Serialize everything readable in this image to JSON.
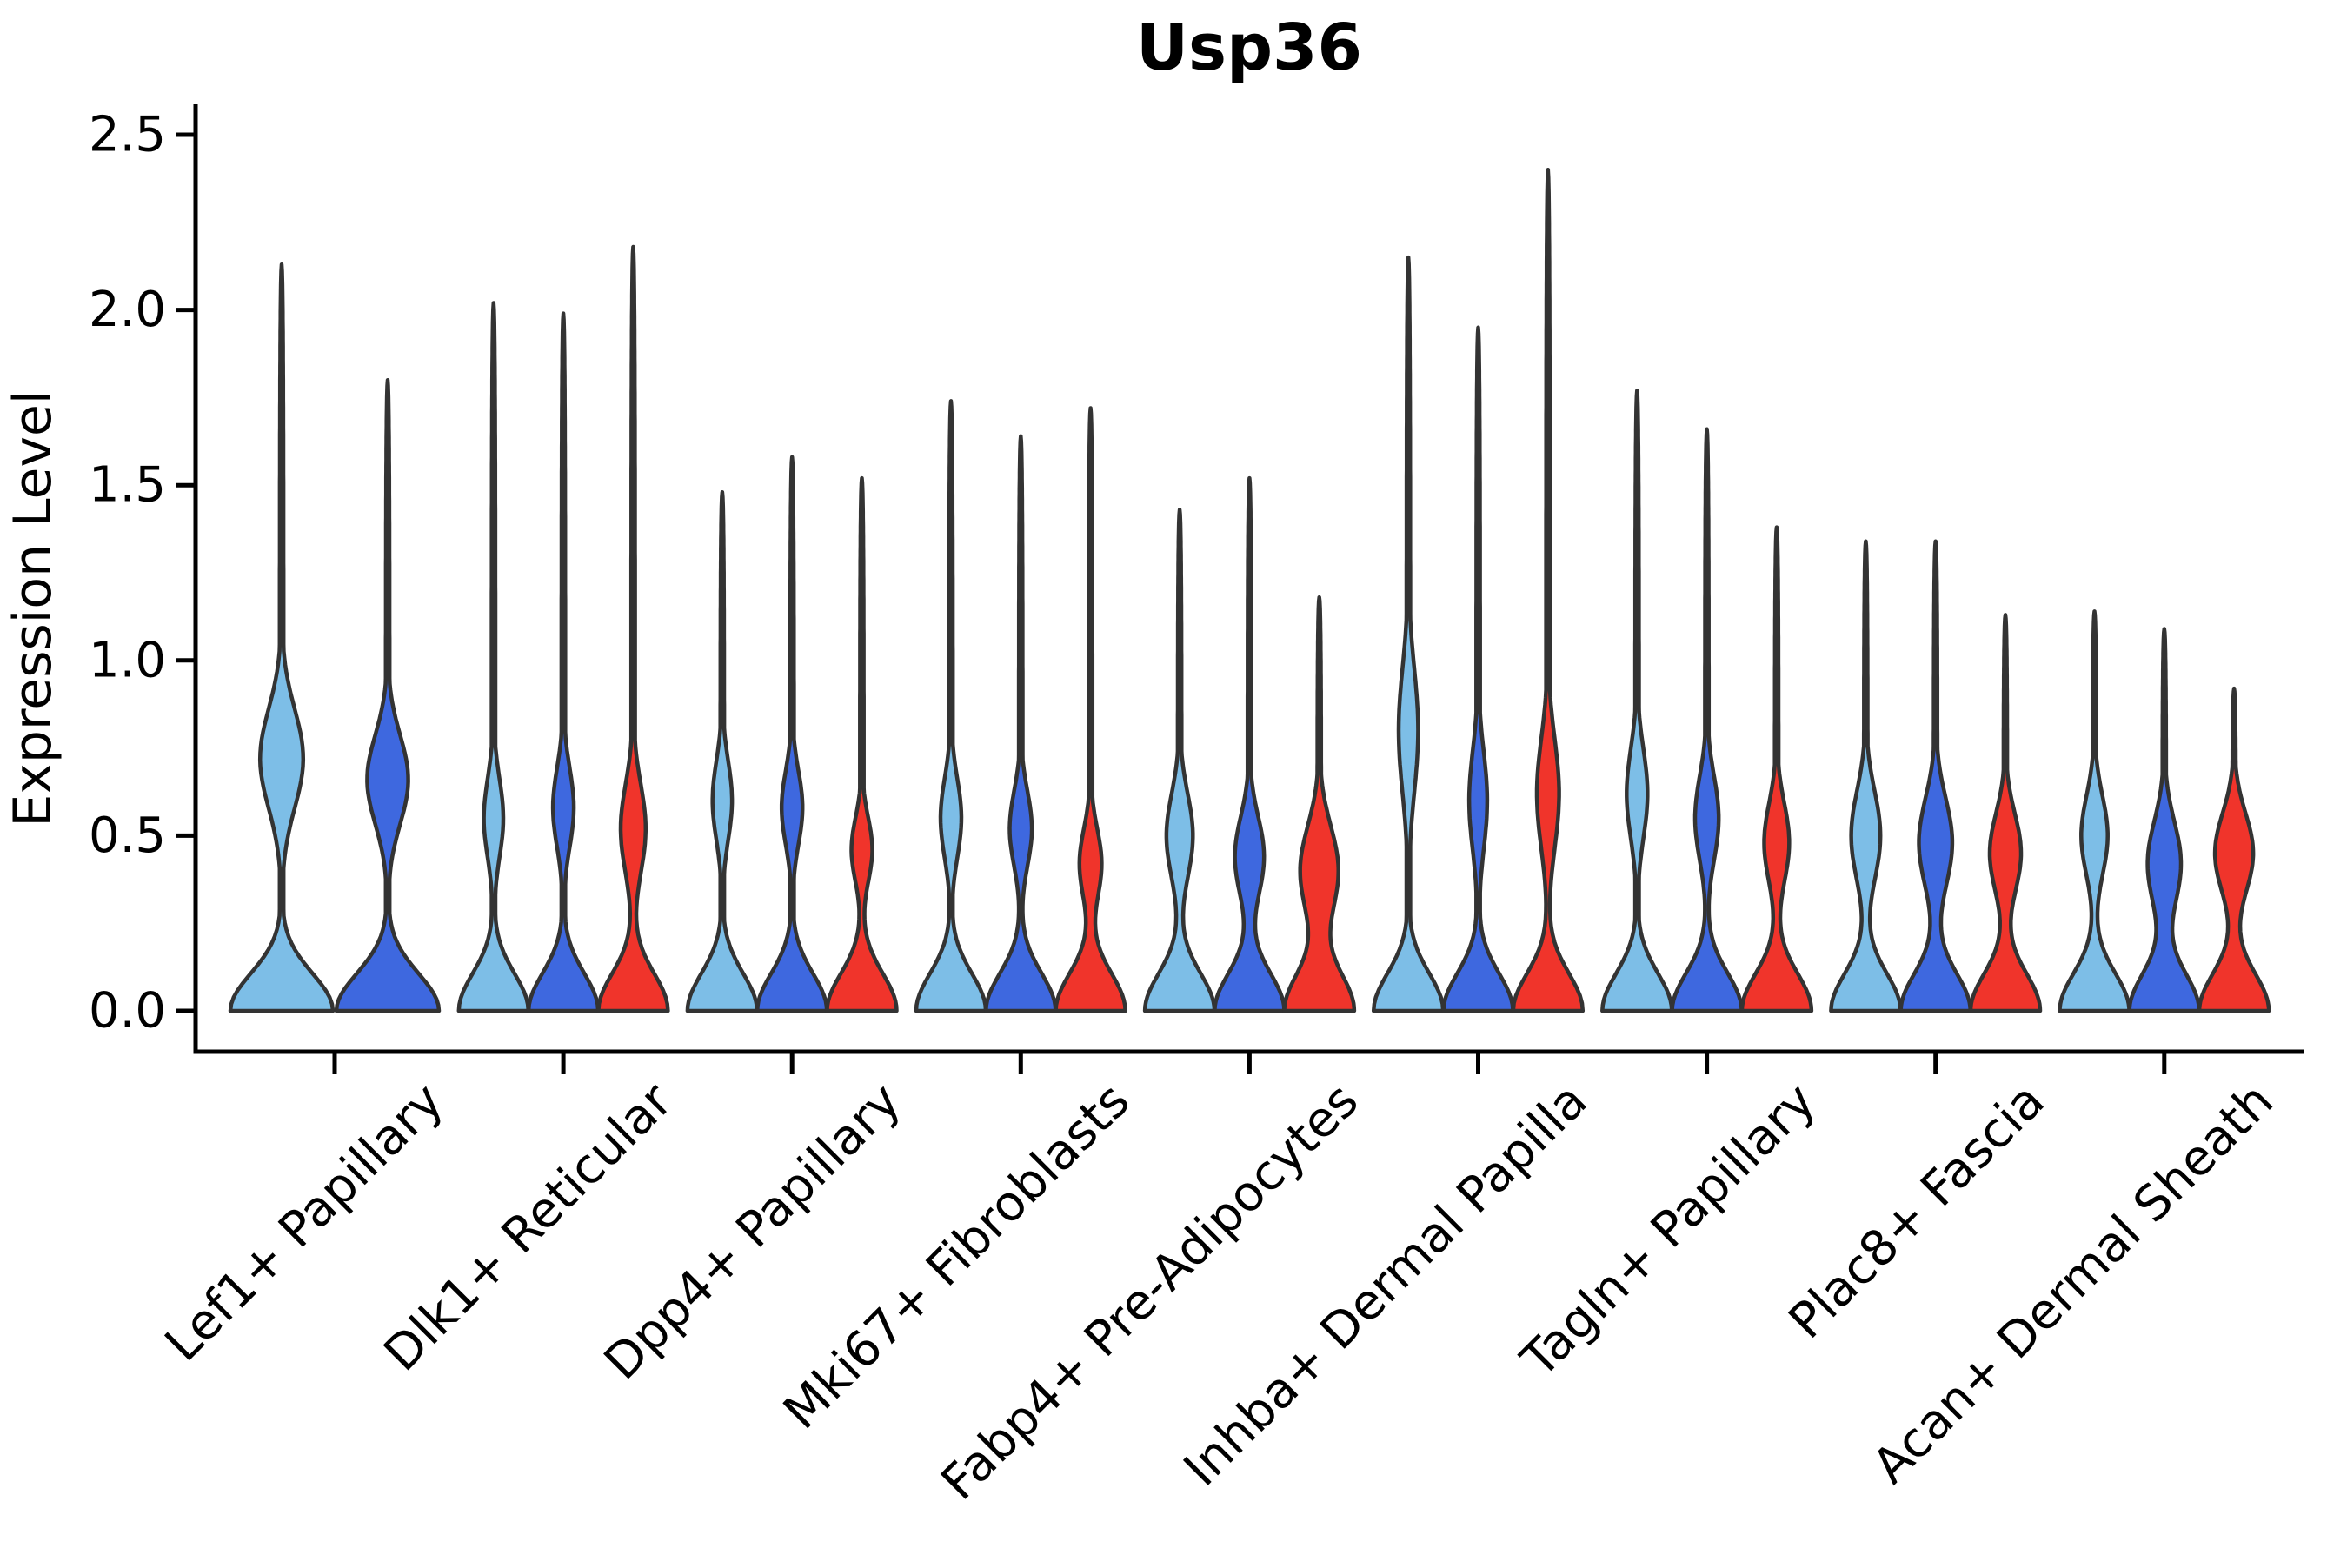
{
  "chart_data": {
    "type": "violin",
    "title": "Usp36",
    "xlabel": "",
    "ylabel": "Expression Level",
    "ylim": [
      0,
      2.5
    ],
    "yticks": [
      0.0,
      0.5,
      1.0,
      1.5,
      2.0,
      2.5
    ],
    "ytick_labels": [
      "0.0",
      "0.5",
      "1.0",
      "1.5",
      "2.0",
      "2.5"
    ],
    "grid": false,
    "legend": "none",
    "palette": {
      "light_blue": "#7DBEE7",
      "dark_blue": "#3E68DF",
      "red": "#F0342B",
      "outline": "#333333",
      "axis": "#000000"
    },
    "categories": [
      "Lef1+ Papillary",
      "Dlk1+ Reticular",
      "Dpp4+ Papillary",
      "Mki67+ Fibroblasts",
      "Fabp4+ Pre-Adipocytes",
      "Inhba+ Dermal Papilla",
      "Tagln+ Papillary",
      "Plac8+ Fascia",
      "Acan+ Dermal Sheath"
    ],
    "groups": [
      {
        "category": "Lef1+ Papillary",
        "violins": [
          {
            "color": "light_blue",
            "max_expression": 2.13,
            "bulge_center": 0.72,
            "bulge_sigma": 0.2,
            "bulge_weight": 0.42
          },
          {
            "color": "dark_blue",
            "max_expression": 1.8,
            "bulge_center": 0.66,
            "bulge_sigma": 0.18,
            "bulge_weight": 0.4
          }
        ]
      },
      {
        "category": "Dlk1+ Reticular",
        "violins": [
          {
            "color": "light_blue",
            "max_expression": 2.02,
            "bulge_center": 0.55,
            "bulge_sigma": 0.16,
            "bulge_weight": 0.28
          },
          {
            "color": "dark_blue",
            "max_expression": 1.99,
            "bulge_center": 0.58,
            "bulge_sigma": 0.16,
            "bulge_weight": 0.3
          },
          {
            "color": "red",
            "max_expression": 2.18,
            "bulge_center": 0.52,
            "bulge_sigma": 0.18,
            "bulge_weight": 0.36
          }
        ]
      },
      {
        "category": "Dpp4+ Papillary",
        "violins": [
          {
            "color": "light_blue",
            "max_expression": 1.48,
            "bulge_center": 0.6,
            "bulge_sigma": 0.16,
            "bulge_weight": 0.28
          },
          {
            "color": "dark_blue",
            "max_expression": 1.58,
            "bulge_center": 0.58,
            "bulge_sigma": 0.15,
            "bulge_weight": 0.3
          },
          {
            "color": "red",
            "max_expression": 1.52,
            "bulge_center": 0.46,
            "bulge_sigma": 0.13,
            "bulge_weight": 0.3
          }
        ]
      },
      {
        "category": "Mki67+ Fibroblasts",
        "violins": [
          {
            "color": "light_blue",
            "max_expression": 1.74,
            "bulge_center": 0.55,
            "bulge_sigma": 0.16,
            "bulge_weight": 0.3
          },
          {
            "color": "dark_blue",
            "max_expression": 1.64,
            "bulge_center": 0.52,
            "bulge_sigma": 0.15,
            "bulge_weight": 0.32
          },
          {
            "color": "red",
            "max_expression": 1.72,
            "bulge_center": 0.42,
            "bulge_sigma": 0.14,
            "bulge_weight": 0.32
          }
        ]
      },
      {
        "category": "Fabp4+ Pre-Adipocytes",
        "violins": [
          {
            "color": "light_blue",
            "max_expression": 1.43,
            "bulge_center": 0.5,
            "bulge_sigma": 0.17,
            "bulge_weight": 0.38
          },
          {
            "color": "dark_blue",
            "max_expression": 1.52,
            "bulge_center": 0.44,
            "bulge_sigma": 0.16,
            "bulge_weight": 0.42
          },
          {
            "color": "red",
            "max_expression": 1.18,
            "bulge_center": 0.4,
            "bulge_sigma": 0.18,
            "bulge_weight": 0.55
          }
        ]
      },
      {
        "category": "Inhba+ Dermal Papilla",
        "violins": [
          {
            "color": "light_blue",
            "max_expression": 2.15,
            "bulge_center": 0.8,
            "bulge_sigma": 0.25,
            "bulge_weight": 0.28
          },
          {
            "color": "dark_blue",
            "max_expression": 1.95,
            "bulge_center": 0.6,
            "bulge_sigma": 0.2,
            "bulge_weight": 0.26
          },
          {
            "color": "red",
            "max_expression": 2.4,
            "bulge_center": 0.62,
            "bulge_sigma": 0.22,
            "bulge_weight": 0.32
          }
        ]
      },
      {
        "category": "Tagln+ Papillary",
        "violins": [
          {
            "color": "light_blue",
            "max_expression": 1.77,
            "bulge_center": 0.62,
            "bulge_sigma": 0.18,
            "bulge_weight": 0.3
          },
          {
            "color": "dark_blue",
            "max_expression": 1.66,
            "bulge_center": 0.55,
            "bulge_sigma": 0.17,
            "bulge_weight": 0.34
          },
          {
            "color": "red",
            "max_expression": 1.38,
            "bulge_center": 0.48,
            "bulge_sigma": 0.16,
            "bulge_weight": 0.36
          }
        ]
      },
      {
        "category": "Plac8+ Fascia",
        "violins": [
          {
            "color": "light_blue",
            "max_expression": 1.34,
            "bulge_center": 0.5,
            "bulge_sigma": 0.18,
            "bulge_weight": 0.42
          },
          {
            "color": "dark_blue",
            "max_expression": 1.34,
            "bulge_center": 0.48,
            "bulge_sigma": 0.18,
            "bulge_weight": 0.48
          },
          {
            "color": "red",
            "max_expression": 1.13,
            "bulge_center": 0.45,
            "bulge_sigma": 0.16,
            "bulge_weight": 0.45
          }
        ]
      },
      {
        "category": "Acan+ Dermal Sheath",
        "violins": [
          {
            "color": "light_blue",
            "max_expression": 1.14,
            "bulge_center": 0.5,
            "bulge_sigma": 0.16,
            "bulge_weight": 0.38
          },
          {
            "color": "dark_blue",
            "max_expression": 1.09,
            "bulge_center": 0.42,
            "bulge_sigma": 0.17,
            "bulge_weight": 0.48
          },
          {
            "color": "red",
            "max_expression": 0.92,
            "bulge_center": 0.45,
            "bulge_sigma": 0.16,
            "bulge_weight": 0.55
          }
        ]
      }
    ]
  }
}
